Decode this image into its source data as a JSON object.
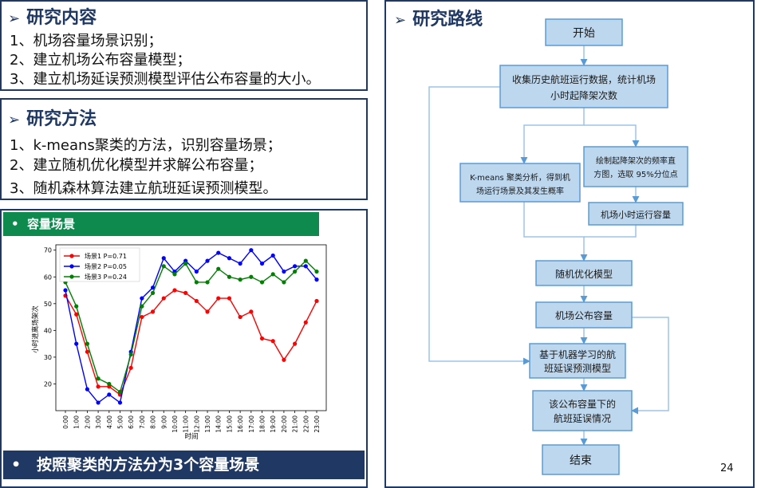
{
  "content_section": {
    "title": "研究内容",
    "items": [
      "1、机场容量场景识别；",
      "2、建立机场公布容量模型；",
      "3、建立机场延误预测模型评估公布容量的大小。"
    ]
  },
  "method_section": {
    "title": "研究方法",
    "items": [
      "1、k-means聚类的方法，识别容量场景；",
      "2、建立随机优化模型并求解公布容量；",
      "3、随机森林算法建立航班延误预测模型。"
    ]
  },
  "scene_section": {
    "title": "容量场景",
    "caption": "按照聚类的方法分为3个容量场景"
  },
  "route_section": {
    "title": "研究路线",
    "nodes": {
      "start": "开始",
      "collect_line1": "收集历史航班运行数据，统计机场",
      "collect_line2": "小时起降架次数",
      "kmeans_line1": "K-means 聚类分析，得到机",
      "kmeans_line2": "场运行场景及其发生概率",
      "hist_line1": "绘制起降架次的频率直",
      "hist_line2": "方图，选取 95%分位点",
      "hourly": "机场小时运行容量",
      "optim": "随机优化模型",
      "published": "机场公布容量",
      "ml_line1": "基于机器学习的航",
      "ml_line2": "班延误预测模型",
      "delay_line1": "该公布容量下的",
      "delay_line2": "航班延误情况",
      "end": "结束"
    }
  },
  "page_number": "24",
  "colors": {
    "frame": "#1f3864",
    "green_bar": "#0f8a4f",
    "blue_bar": "#203864",
    "node_fill": "#bdd7ee",
    "node_border": "#5b9bd5",
    "scene1": "#ff0000",
    "scene2": "#0000ff",
    "scene3": "#008000"
  },
  "chart_data": {
    "type": "line",
    "x": [
      "0:00",
      "1:00",
      "2:00",
      "3:00",
      "4:00",
      "5:00",
      "6:00",
      "7:00",
      "8:00",
      "9:00",
      "10:00",
      "11:00",
      "12:00",
      "13:00",
      "14:00",
      "15:00",
      "16:00",
      "17:00",
      "18:00",
      "19:00",
      "20:00",
      "21:00",
      "22:00",
      "23:00"
    ],
    "series": [
      {
        "name": "场景1  P=0.71",
        "color": "#ff0000",
        "values": [
          53,
          46,
          32,
          19,
          19,
          16,
          26,
          45,
          47,
          52,
          55,
          54,
          51,
          47,
          52,
          52,
          45,
          47,
          37,
          36,
          29,
          35,
          43,
          51
        ]
      },
      {
        "name": "场景2  P=0.05",
        "color": "#0000ff",
        "values": [
          55,
          35,
          18,
          13,
          16,
          13,
          32,
          52,
          56,
          67,
          62,
          66,
          62,
          66,
          69,
          67,
          65,
          70,
          65,
          68,
          62,
          64,
          64,
          59
        ]
      },
      {
        "name": "场景3  P=0.24",
        "color": "#008000",
        "values": [
          58,
          49,
          35,
          22,
          20,
          17,
          31,
          49,
          54,
          64,
          61,
          65,
          58,
          58,
          63,
          60,
          59,
          60,
          58,
          61,
          58,
          62,
          66,
          62
        ]
      }
    ],
    "xlabel": "时间",
    "ylabel": "小时进离场架次",
    "ylim": [
      10,
      72
    ],
    "yticks": [
      20,
      30,
      40,
      50,
      60,
      70
    ],
    "legend": "top-left",
    "grid": false
  }
}
